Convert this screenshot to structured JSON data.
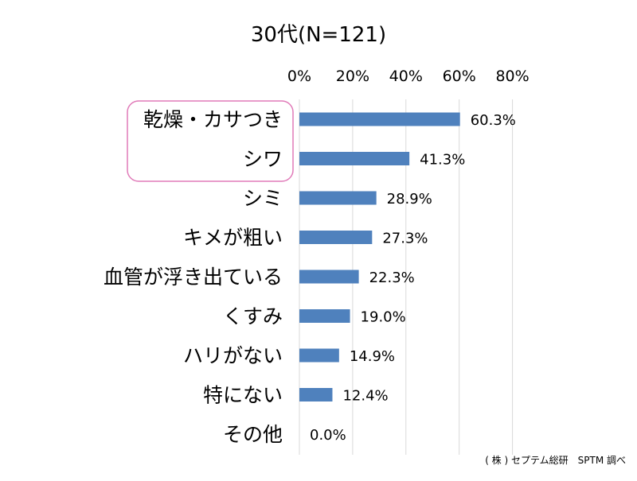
{
  "chart_data": {
    "type": "bar",
    "orientation": "horizontal",
    "title": "30代(N=121)",
    "categories": [
      "乾燥・カサつき",
      "シワ",
      "シミ",
      "キメが粗い",
      "血管が浮き出ている",
      "くすみ",
      "ハリがない",
      "特にない",
      "その他"
    ],
    "values": [
      60.3,
      41.3,
      28.9,
      27.3,
      22.3,
      19.0,
      14.9,
      12.4,
      0.0
    ],
    "value_labels": [
      "60.3%",
      "41.3%",
      "28.9%",
      "27.3%",
      "22.3%",
      "19.0%",
      "14.9%",
      "12.4%",
      "0.0%"
    ],
    "x_ticks": [
      0,
      20,
      40,
      60,
      80
    ],
    "x_tick_labels": [
      "0%",
      "20%",
      "40%",
      "60%",
      "80%"
    ],
    "xlim": [
      0,
      80
    ],
    "xlabel": "",
    "ylabel": "",
    "grid": "vertical",
    "bar_color": "#4f81bd",
    "highlight": {
      "categories": [
        "乾燥・カサつき",
        "シワ"
      ],
      "color": "#e07ab8"
    }
  },
  "source": "( 株 ) セプテム総研　SPTM 調べ"
}
